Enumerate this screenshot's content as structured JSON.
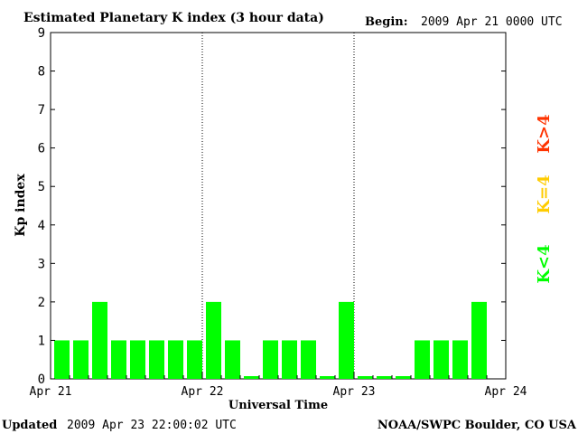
{
  "header": {
    "title": "Estimated Planetary K index (3 hour data)",
    "begin_label": "Begin:",
    "begin_value": "2009 Apr 21 0000 UTC"
  },
  "footer": {
    "updated_label": "Updated",
    "updated_value": "2009 Apr 23 22:00:02 UTC",
    "credit": "NOAA/SWPC Boulder, CO USA"
  },
  "legend": [
    {
      "label": "K<4",
      "color": "#00ff00"
    },
    {
      "label": "K=4",
      "color": "#ffcc00"
    },
    {
      "label": "K>4",
      "color": "#ff3300"
    }
  ],
  "chart_data": {
    "type": "bar",
    "title": "Estimated Planetary K index (3 hour data)",
    "xlabel": "Universal Time",
    "ylabel": "Kp index",
    "ylim": [
      0,
      9
    ],
    "yticks": [
      "0",
      "1",
      "2",
      "3",
      "4",
      "5",
      "6",
      "7",
      "8",
      "9"
    ],
    "xticks": [
      "Apr 21",
      "Apr 22",
      "Apr 23",
      "Apr 24"
    ],
    "values": [
      1,
      1,
      2,
      1,
      1,
      1,
      1,
      1,
      2,
      1,
      0,
      1,
      1,
      1,
      0,
      2,
      0,
      0,
      0,
      1,
      1,
      1,
      2
    ],
    "bar_color": "#00ff00",
    "grid": false,
    "day_separators": true
  }
}
